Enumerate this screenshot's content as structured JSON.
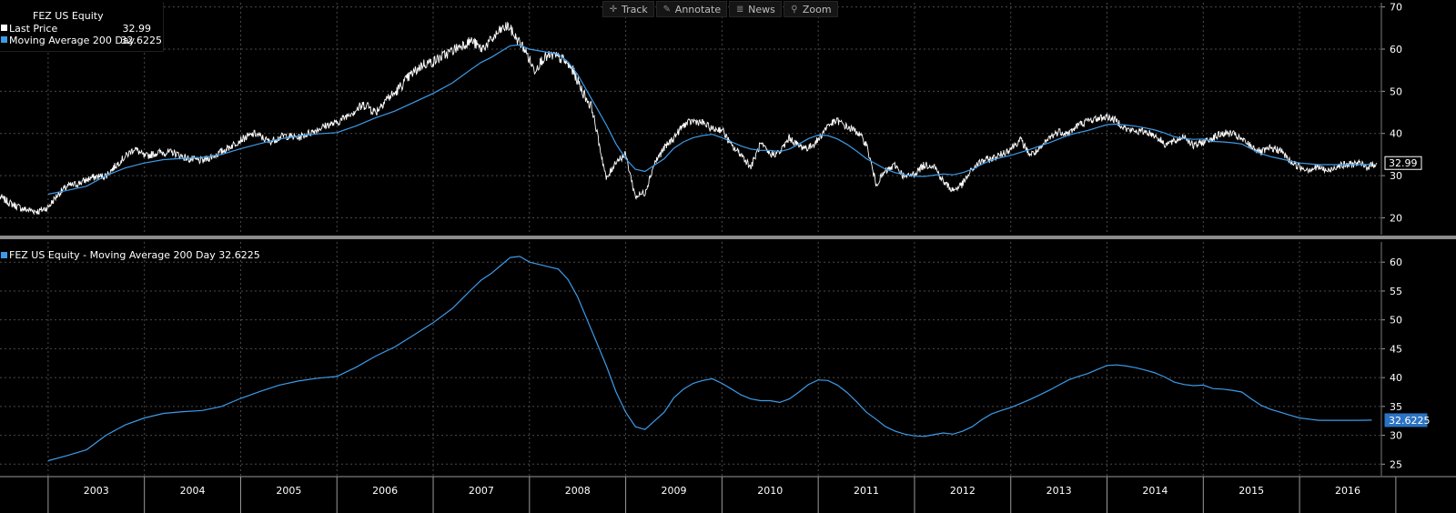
{
  "toolbar": {
    "track_label": "Track",
    "annotate_label": "Annotate",
    "news_label": "News",
    "zoom_label": "Zoom"
  },
  "colors": {
    "background": "#000000",
    "grid": "#4a4a4a",
    "price_line": "#ffffff",
    "ma_line": "#3d9be9",
    "axis_text": "#ffffff",
    "separator": "#8c8c8c"
  },
  "legend_top": {
    "title": "FEZ US Equity",
    "rows": [
      {
        "name": "Last Price",
        "value": "32.99",
        "color": "#ffffff"
      },
      {
        "name": "Moving Average 200 Day",
        "value": "32.6225",
        "color": "#3d9be9"
      }
    ]
  },
  "legend_bottom": {
    "label": "FEZ US Equity - Moving Average 200 Day 32.6225",
    "color": "#3d9be9"
  },
  "chart_data": [
    {
      "type": "line",
      "panel": "price",
      "xlim": [
        2002.5,
        2016.85
      ],
      "ylim": [
        16,
        71
      ],
      "yticks": [
        20,
        30,
        40,
        50,
        60,
        70
      ],
      "last_value_label": "32.99",
      "series": [
        {
          "name": "Last Price",
          "x": [
            2002.5,
            2002.6,
            2002.75,
            2002.9,
            2003.0,
            2003.1,
            2003.2,
            2003.3,
            2003.45,
            2003.6,
            2003.75,
            2003.9,
            2004.0,
            2004.15,
            2004.3,
            2004.45,
            2004.6,
            2004.75,
            2004.9,
            2005.0,
            2005.15,
            2005.3,
            2005.45,
            2005.6,
            2005.75,
            2005.9,
            2006.0,
            2006.15,
            2006.3,
            2006.4,
            2006.5,
            2006.6,
            2006.75,
            2006.9,
            2007.0,
            2007.15,
            2007.3,
            2007.4,
            2007.5,
            2007.6,
            2007.7,
            2007.78,
            2007.85,
            2007.95,
            2008.05,
            2008.15,
            2008.25,
            2008.35,
            2008.45,
            2008.55,
            2008.65,
            2008.72,
            2008.8,
            2008.9,
            2009.0,
            2009.1,
            2009.2,
            2009.3,
            2009.4,
            2009.5,
            2009.6,
            2009.7,
            2009.8,
            2009.9,
            2010.0,
            2010.1,
            2010.2,
            2010.3,
            2010.4,
            2010.5,
            2010.6,
            2010.7,
            2010.8,
            2010.9,
            2011.0,
            2011.1,
            2011.2,
            2011.3,
            2011.4,
            2011.5,
            2011.6,
            2011.7,
            2011.8,
            2011.9,
            2012.0,
            2012.1,
            2012.2,
            2012.3,
            2012.4,
            2012.5,
            2012.6,
            2012.7,
            2012.8,
            2012.9,
            2013.0,
            2013.1,
            2013.2,
            2013.3,
            2013.4,
            2013.5,
            2013.6,
            2013.7,
            2013.8,
            2013.9,
            2014.0,
            2014.1,
            2014.2,
            2014.3,
            2014.4,
            2014.5,
            2014.6,
            2014.7,
            2014.8,
            2014.9,
            2015.0,
            2015.1,
            2015.2,
            2015.3,
            2015.4,
            2015.5,
            2015.6,
            2015.7,
            2015.8,
            2015.9,
            2016.0,
            2016.1,
            2016.2,
            2016.3,
            2016.4,
            2016.5,
            2016.6,
            2016.7,
            2016.8
          ],
          "values": [
            25.0,
            23.5,
            22.0,
            21.5,
            22.5,
            25.5,
            27.5,
            28.0,
            29.5,
            30.0,
            33.5,
            36.5,
            34.5,
            35.5,
            35.5,
            34.0,
            33.5,
            35.0,
            37.0,
            38.5,
            40.0,
            38.0,
            39.5,
            39.0,
            40.5,
            42.0,
            42.5,
            45.0,
            47.0,
            45.0,
            48.0,
            49.5,
            53.5,
            56.5,
            57.0,
            59.0,
            61.0,
            62.0,
            60.0,
            62.0,
            64.5,
            65.5,
            63.0,
            60.0,
            55.0,
            58.0,
            58.5,
            57.5,
            55.0,
            50.0,
            46.0,
            38.0,
            29.0,
            33.5,
            35.0,
            25.0,
            26.0,
            33.0,
            36.5,
            39.0,
            42.0,
            43.0,
            42.5,
            41.0,
            41.0,
            37.0,
            35.0,
            32.0,
            37.5,
            35.0,
            35.5,
            39.0,
            37.0,
            36.5,
            38.5,
            42.0,
            43.0,
            41.5,
            40.5,
            37.5,
            28.0,
            31.0,
            32.5,
            29.5,
            30.5,
            32.5,
            32.5,
            28.5,
            26.5,
            28.0,
            31.5,
            33.5,
            34.0,
            35.0,
            36.5,
            38.5,
            35.0,
            36.0,
            39.0,
            40.5,
            40.0,
            42.0,
            43.0,
            43.5,
            44.0,
            43.0,
            41.0,
            40.5,
            40.5,
            39.5,
            37.5,
            38.0,
            39.5,
            37.0,
            38.0,
            39.0,
            40.0,
            40.0,
            38.5,
            37.0,
            35.5,
            36.5,
            36.0,
            33.5,
            32.0,
            31.5,
            32.0,
            31.0,
            32.5,
            32.5,
            33.0,
            32.0,
            32.99
          ],
          "color": "#ffffff"
        },
        {
          "name": "Moving Average 200 Day",
          "x": [
            2003.0,
            2003.2,
            2003.4,
            2003.6,
            2003.8,
            2004.0,
            2004.2,
            2004.4,
            2004.6,
            2004.8,
            2005.0,
            2005.2,
            2005.4,
            2005.6,
            2005.8,
            2006.0,
            2006.2,
            2006.4,
            2006.6,
            2006.8,
            2007.0,
            2007.2,
            2007.4,
            2007.5,
            2007.6,
            2007.7,
            2007.8,
            2007.9,
            2008.0,
            2008.1,
            2008.2,
            2008.3,
            2008.4,
            2008.5,
            2008.6,
            2008.7,
            2008.8,
            2008.9,
            2009.0,
            2009.1,
            2009.2,
            2009.3,
            2009.4,
            2009.5,
            2009.6,
            2009.7,
            2009.8,
            2009.9,
            2010.0,
            2010.1,
            2010.2,
            2010.3,
            2010.4,
            2010.5,
            2010.6,
            2010.7,
            2010.8,
            2010.9,
            2011.0,
            2011.1,
            2011.2,
            2011.3,
            2011.4,
            2011.5,
            2011.6,
            2011.7,
            2011.8,
            2011.9,
            2012.0,
            2012.1,
            2012.2,
            2012.3,
            2012.4,
            2012.5,
            2012.6,
            2012.7,
            2012.8,
            2012.9,
            2013.0,
            2013.1,
            2013.2,
            2013.3,
            2013.4,
            2013.5,
            2013.6,
            2013.7,
            2013.8,
            2013.9,
            2014.0,
            2014.1,
            2014.2,
            2014.3,
            2014.4,
            2014.5,
            2014.6,
            2014.7,
            2014.8,
            2014.9,
            2015.0,
            2015.1,
            2015.2,
            2015.3,
            2015.4,
            2015.5,
            2015.6,
            2015.7,
            2015.8,
            2015.9,
            2016.0,
            2016.1,
            2016.2,
            2016.3,
            2016.4,
            2016.5,
            2016.6,
            2016.7,
            2016.75
          ],
          "values": [
            25.6,
            26.5,
            27.5,
            30.0,
            31.8,
            33.0,
            33.8,
            34.1,
            34.3,
            35.0,
            36.4,
            37.6,
            38.7,
            39.4,
            39.9,
            40.2,
            41.8,
            43.7,
            45.3,
            47.4,
            49.5,
            52.0,
            55.3,
            56.9,
            58.0,
            59.4,
            60.8,
            61.0,
            60.0,
            59.6,
            59.2,
            58.8,
            57.0,
            54.0,
            50.0,
            46.0,
            42.0,
            37.5,
            34.0,
            31.5,
            31.0,
            32.5,
            34.0,
            36.5,
            38.0,
            39.0,
            39.5,
            39.8,
            39.0,
            38.0,
            37.0,
            36.3,
            36.0,
            36.0,
            35.7,
            36.3,
            37.5,
            38.8,
            39.6,
            39.5,
            38.7,
            37.4,
            35.8,
            34.0,
            32.8,
            31.5,
            30.7,
            30.2,
            29.9,
            29.8,
            30.1,
            30.4,
            30.2,
            30.7,
            31.5,
            32.7,
            33.7,
            34.3,
            34.8,
            35.5,
            36.2,
            37.0,
            37.8,
            38.7,
            39.6,
            40.2,
            40.7,
            41.4,
            42.1,
            42.2,
            42.0,
            41.7,
            41.3,
            40.8,
            40.1,
            39.2,
            38.8,
            38.6,
            38.7,
            38.1,
            38.0,
            37.8,
            37.5,
            36.3,
            35.2,
            34.5,
            34.0,
            33.5,
            33.0,
            32.8,
            32.6,
            32.6,
            32.6,
            32.6,
            32.6,
            32.62,
            32.6225
          ],
          "color": "#3d9be9"
        }
      ]
    },
    {
      "type": "line",
      "panel": "moving_average",
      "xlim": [
        2002.5,
        2016.85
      ],
      "ylim": [
        23,
        63.5
      ],
      "yticks": [
        25,
        30,
        35,
        40,
        45,
        50,
        55,
        60
      ],
      "last_value_label": "32.6225",
      "series": [
        {
          "name": "FEZ US Equity - Moving Average 200 Day",
          "x": [
            2003.0,
            2003.2,
            2003.4,
            2003.6,
            2003.8,
            2004.0,
            2004.2,
            2004.4,
            2004.6,
            2004.8,
            2005.0,
            2005.2,
            2005.4,
            2005.6,
            2005.8,
            2006.0,
            2006.2,
            2006.4,
            2006.6,
            2006.8,
            2007.0,
            2007.2,
            2007.4,
            2007.5,
            2007.6,
            2007.7,
            2007.8,
            2007.9,
            2008.0,
            2008.1,
            2008.2,
            2008.3,
            2008.4,
            2008.5,
            2008.6,
            2008.7,
            2008.8,
            2008.9,
            2009.0,
            2009.1,
            2009.2,
            2009.3,
            2009.4,
            2009.5,
            2009.6,
            2009.7,
            2009.8,
            2009.9,
            2010.0,
            2010.1,
            2010.2,
            2010.3,
            2010.4,
            2010.5,
            2010.6,
            2010.7,
            2010.8,
            2010.9,
            2011.0,
            2011.1,
            2011.2,
            2011.3,
            2011.4,
            2011.5,
            2011.6,
            2011.7,
            2011.8,
            2011.9,
            2012.0,
            2012.1,
            2012.2,
            2012.3,
            2012.4,
            2012.5,
            2012.6,
            2012.7,
            2012.8,
            2012.9,
            2013.0,
            2013.1,
            2013.2,
            2013.3,
            2013.4,
            2013.5,
            2013.6,
            2013.7,
            2013.8,
            2013.9,
            2014.0,
            2014.1,
            2014.2,
            2014.3,
            2014.4,
            2014.5,
            2014.6,
            2014.7,
            2014.8,
            2014.9,
            2015.0,
            2015.1,
            2015.2,
            2015.3,
            2015.4,
            2015.5,
            2015.6,
            2015.7,
            2015.8,
            2015.9,
            2016.0,
            2016.1,
            2016.2,
            2016.3,
            2016.4,
            2016.5,
            2016.6,
            2016.7,
            2016.75
          ],
          "values": [
            25.6,
            26.5,
            27.5,
            30.0,
            31.8,
            33.0,
            33.8,
            34.1,
            34.3,
            35.0,
            36.4,
            37.6,
            38.7,
            39.4,
            39.9,
            40.2,
            41.8,
            43.7,
            45.3,
            47.4,
            49.5,
            52.0,
            55.3,
            56.9,
            58.0,
            59.4,
            60.8,
            61.0,
            60.0,
            59.6,
            59.2,
            58.8,
            57.0,
            54.0,
            50.0,
            46.0,
            42.0,
            37.5,
            34.0,
            31.5,
            31.0,
            32.5,
            34.0,
            36.5,
            38.0,
            39.0,
            39.5,
            39.8,
            39.0,
            38.0,
            37.0,
            36.3,
            36.0,
            36.0,
            35.7,
            36.3,
            37.5,
            38.8,
            39.6,
            39.5,
            38.7,
            37.4,
            35.8,
            34.0,
            32.8,
            31.5,
            30.7,
            30.2,
            29.9,
            29.8,
            30.1,
            30.4,
            30.2,
            30.7,
            31.5,
            32.7,
            33.7,
            34.3,
            34.8,
            35.5,
            36.2,
            37.0,
            37.8,
            38.7,
            39.6,
            40.2,
            40.7,
            41.4,
            42.1,
            42.2,
            42.0,
            41.7,
            41.3,
            40.8,
            40.1,
            39.2,
            38.8,
            38.6,
            38.7,
            38.1,
            38.0,
            37.8,
            37.5,
            36.3,
            35.2,
            34.5,
            34.0,
            33.5,
            33.0,
            32.8,
            32.6,
            32.6,
            32.6,
            32.6,
            32.6,
            32.62,
            32.6225
          ],
          "color": "#3d9be9"
        }
      ]
    }
  ],
  "x_axis": {
    "tick_labels": [
      "2003",
      "2004",
      "2005",
      "2006",
      "2007",
      "2008",
      "2009",
      "2010",
      "2011",
      "2012",
      "2013",
      "2014",
      "2015",
      "2016"
    ]
  }
}
